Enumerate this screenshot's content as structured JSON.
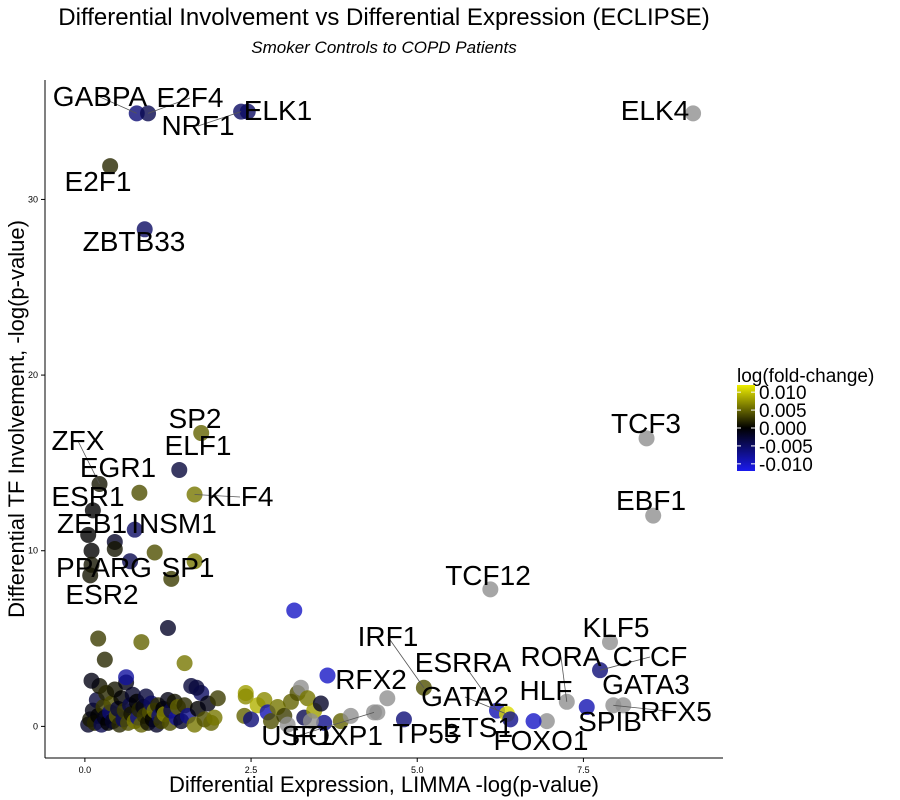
{
  "chart_data": {
    "type": "scatter",
    "title": "Differential Involvement vs Differential Expression (ECLIPSE)",
    "subtitle": "Smoker Controls to COPD Patients",
    "xlabel": "Differential Expression,  LIMMA -log(p-value)",
    "ylabel": "Differential TF Involvement, -log(p-value)",
    "xlim": [
      -0.6,
      9.6
    ],
    "ylim": [
      -1.8,
      36.8
    ],
    "xticks": [
      {
        "value": 0,
        "label": "0.0"
      },
      {
        "value": 2.5,
        "label": "2.5"
      },
      {
        "value": 5,
        "label": "5.0"
      },
      {
        "value": 7.5,
        "label": "7.5"
      }
    ],
    "yticks": [
      {
        "value": 0,
        "label": "0"
      },
      {
        "value": 10,
        "label": "10"
      },
      {
        "value": 20,
        "label": "20"
      },
      {
        "value": 30,
        "label": "30"
      }
    ],
    "grid": false,
    "legend": {
      "title": "log(fold-change)",
      "position": "right",
      "stops": [
        {
          "value": 0.01,
          "label": "0.010"
        },
        {
          "value": 0.005,
          "label": "0.005"
        },
        {
          "value": 0.0,
          "label": "0.000"
        },
        {
          "value": -0.005,
          "label": "-0.005"
        },
        {
          "value": -0.01,
          "label": "-0.010"
        }
      ],
      "colorscale": {
        "low": "#1a1aee",
        "mid": "#000000",
        "high": "#eeee00",
        "na": "#909090"
      },
      "range": [
        -0.012,
        0.012
      ]
    },
    "labeled_points": [
      {
        "name": "GABPA",
        "x": 0.78,
        "y": 34.9,
        "fc": -0.006
      },
      {
        "name": "E2F4",
        "x": 0.95,
        "y": 34.9,
        "fc": -0.004
      },
      {
        "name": "NRF1",
        "x": 2.35,
        "y": 35.0,
        "fc": -0.005
      },
      {
        "name": "ELK1",
        "x": 2.45,
        "y": 35.0,
        "fc": -0.005
      },
      {
        "name": "ELK4",
        "x": 9.15,
        "y": 34.9,
        "fc": null
      },
      {
        "name": "E2F1",
        "x": 0.38,
        "y": 31.9,
        "fc": 0.002
      },
      {
        "name": "ZBTB33",
        "x": 0.9,
        "y": 28.3,
        "fc": -0.005
      },
      {
        "name": "SP2",
        "x": 1.75,
        "y": 16.7,
        "fc": 0.005
      },
      {
        "name": "ELF1",
        "x": 1.42,
        "y": 14.6,
        "fc": -0.003
      },
      {
        "name": "ZFX",
        "x": 0.22,
        "y": 13.8,
        "fc": 0.001
      },
      {
        "name": "EGR1",
        "x": 0.82,
        "y": 13.3,
        "fc": 0.004
      },
      {
        "name": "KLF4",
        "x": 1.65,
        "y": 13.2,
        "fc": 0.006
      },
      {
        "name": "ESR1",
        "x": 0.12,
        "y": 12.3,
        "fc": 0.0
      },
      {
        "name": "INSM1",
        "x": 0.75,
        "y": 11.2,
        "fc": -0.005
      },
      {
        "name": "ZEB1",
        "x": 0.05,
        "y": 10.9,
        "fc": 0.0
      },
      {
        "name": "SP1",
        "x": 1.65,
        "y": 9.4,
        "fc": 0.006
      },
      {
        "name": "PPARG",
        "x": 0.68,
        "y": 9.4,
        "fc": -0.004
      },
      {
        "name": "ESR2",
        "x": 0.08,
        "y": 8.6,
        "fc": 0.001
      },
      {
        "name": "TCF3",
        "x": 8.45,
        "y": 16.4,
        "fc": null
      },
      {
        "name": "EBF1",
        "x": 8.55,
        "y": 12.0,
        "fc": null
      },
      {
        "name": "TCF12",
        "x": 6.1,
        "y": 7.8,
        "fc": null
      },
      {
        "name": "KLF5",
        "x": 7.9,
        "y": 4.8,
        "fc": null
      },
      {
        "name": "IRF1",
        "x": 5.1,
        "y": 2.2,
        "fc": 0.004
      },
      {
        "name": "RORA",
        "x": 7.25,
        "y": 1.4,
        "fc": null
      },
      {
        "name": "CTCF",
        "x": 7.75,
        "y": 3.2,
        "fc": -0.006
      },
      {
        "name": "ESRRA",
        "x": 6.2,
        "y": 0.9,
        "fc": -0.009
      },
      {
        "name": "RFX2",
        "x": 4.55,
        "y": 1.6,
        "fc": null
      },
      {
        "name": "GATA3",
        "x": 8.1,
        "y": 1.2,
        "fc": null
      },
      {
        "name": "GATA2",
        "x": 6.35,
        "y": 0.7,
        "fc": 0.011
      },
      {
        "name": "HLF",
        "x": 6.95,
        "y": 0.3,
        "fc": null
      },
      {
        "name": "RFX5",
        "x": 7.95,
        "y": 1.2,
        "fc": null
      },
      {
        "name": "USF1",
        "x": 4.35,
        "y": 0.8,
        "fc": null
      },
      {
        "name": "SPIB",
        "x": 7.55,
        "y": 1.1,
        "fc": -0.009
      },
      {
        "name": "FOXP1",
        "x": 3.4,
        "y": 0.3,
        "fc": null
      },
      {
        "name": "TP53",
        "x": 4.8,
        "y": 0.4,
        "fc": -0.006
      },
      {
        "name": "ETS1",
        "x": 6.4,
        "y": 0.4,
        "fc": -0.007
      },
      {
        "name": "FOXO1",
        "x": 6.75,
        "y": 0.3,
        "fc": -0.01
      }
    ],
    "points": [
      {
        "x": 0.05,
        "y": 0.1,
        "fc": -0.002
      },
      {
        "x": 0.08,
        "y": 0.4,
        "fc": 0.001
      },
      {
        "x": 0.12,
        "y": 0.9,
        "fc": -0.001
      },
      {
        "x": 0.15,
        "y": 0.2,
        "fc": 0.002
      },
      {
        "x": 0.18,
        "y": 1.5,
        "fc": -0.003
      },
      {
        "x": 0.2,
        "y": 0.6,
        "fc": 0.0
      },
      {
        "x": 0.22,
        "y": 2.3,
        "fc": 0.001
      },
      {
        "x": 0.25,
        "y": 0.1,
        "fc": -0.004
      },
      {
        "x": 0.28,
        "y": 1.1,
        "fc": 0.003
      },
      {
        "x": 0.3,
        "y": 0.5,
        "fc": -0.001
      },
      {
        "x": 0.32,
        "y": 1.9,
        "fc": 0.002
      },
      {
        "x": 0.35,
        "y": 0.2,
        "fc": 0.0
      },
      {
        "x": 0.38,
        "y": 0.8,
        "fc": -0.006
      },
      {
        "x": 0.4,
        "y": 1.3,
        "fc": 0.004
      },
      {
        "x": 0.42,
        "y": 0.3,
        "fc": -0.002
      },
      {
        "x": 0.45,
        "y": 2.1,
        "fc": 0.001
      },
      {
        "x": 0.48,
        "y": 0.6,
        "fc": 0.005
      },
      {
        "x": 0.5,
        "y": 1.0,
        "fc": -0.003
      },
      {
        "x": 0.52,
        "y": 0.1,
        "fc": 0.002
      },
      {
        "x": 0.55,
        "y": 1.6,
        "fc": 0.0
      },
      {
        "x": 0.58,
        "y": 0.4,
        "fc": -0.005
      },
      {
        "x": 0.6,
        "y": 0.9,
        "fc": 0.003
      },
      {
        "x": 0.62,
        "y": 2.5,
        "fc": -0.001
      },
      {
        "x": 0.65,
        "y": 0.2,
        "fc": 0.004
      },
      {
        "x": 0.68,
        "y": 1.2,
        "fc": -0.004
      },
      {
        "x": 0.7,
        "y": 0.7,
        "fc": 0.001
      },
      {
        "x": 0.72,
        "y": 1.8,
        "fc": -0.002
      },
      {
        "x": 0.75,
        "y": 0.3,
        "fc": 0.006
      },
      {
        "x": 0.78,
        "y": 1.4,
        "fc": 0.0
      },
      {
        "x": 0.8,
        "y": 0.5,
        "fc": -0.007
      },
      {
        "x": 0.82,
        "y": 0.95,
        "fc": 0.002
      },
      {
        "x": 0.85,
        "y": 0.1,
        "fc": 0.005
      },
      {
        "x": 0.88,
        "y": 1.1,
        "fc": -0.001
      },
      {
        "x": 0.9,
        "y": 0.6,
        "fc": 0.003
      },
      {
        "x": 0.92,
        "y": 1.7,
        "fc": -0.003
      },
      {
        "x": 0.95,
        "y": 0.2,
        "fc": 0.001
      },
      {
        "x": 0.98,
        "y": 0.8,
        "fc": 0.004
      },
      {
        "x": 1.0,
        "y": 1.3,
        "fc": -0.005
      },
      {
        "x": 1.02,
        "y": 0.4,
        "fc": 0.0
      },
      {
        "x": 1.05,
        "y": 0.9,
        "fc": 0.006
      },
      {
        "x": 1.08,
        "y": 0.1,
        "fc": -0.002
      },
      {
        "x": 1.1,
        "y": 1.2,
        "fc": 0.002
      },
      {
        "x": 1.12,
        "y": 0.6,
        "fc": -0.006
      },
      {
        "x": 1.15,
        "y": 0.3,
        "fc": 0.003
      },
      {
        "x": 1.18,
        "y": 1.0,
        "fc": 0.0
      },
      {
        "x": 1.2,
        "y": 0.7,
        "fc": 0.007
      },
      {
        "x": 1.25,
        "y": 1.5,
        "fc": -0.001
      },
      {
        "x": 1.28,
        "y": 0.2,
        "fc": 0.004
      },
      {
        "x": 1.3,
        "y": 0.9,
        "fc": -0.004
      },
      {
        "x": 1.35,
        "y": 1.4,
        "fc": 0.001
      },
      {
        "x": 1.38,
        "y": 0.5,
        "fc": -0.008
      },
      {
        "x": 1.4,
        "y": 1.1,
        "fc": 0.005
      },
      {
        "x": 1.45,
        "y": 0.3,
        "fc": -0.002
      },
      {
        "x": 1.5,
        "y": 1.2,
        "fc": 0.002
      },
      {
        "x": 1.55,
        "y": 0.6,
        "fc": -0.007
      },
      {
        "x": 1.6,
        "y": 2.3,
        "fc": -0.003
      },
      {
        "x": 1.65,
        "y": 0.1,
        "fc": 0.006
      },
      {
        "x": 1.7,
        "y": 1.0,
        "fc": 0.0
      },
      {
        "x": 1.75,
        "y": 1.9,
        "fc": -0.005
      },
      {
        "x": 1.8,
        "y": 0.4,
        "fc": 0.004
      },
      {
        "x": 1.85,
        "y": 1.3,
        "fc": -0.001
      },
      {
        "x": 1.9,
        "y": 0.2,
        "fc": 0.005
      },
      {
        "x": 1.95,
        "y": 0.5,
        "fc": 0.006
      },
      {
        "x": 2.0,
        "y": 1.6,
        "fc": 0.003
      },
      {
        "x": 0.1,
        "y": 2.6,
        "fc": -0.001
      },
      {
        "x": 0.1,
        "y": 10.0,
        "fc": 0.0
      },
      {
        "x": 0.1,
        "y": 9.2,
        "fc": 0.001
      },
      {
        "x": 0.45,
        "y": 10.5,
        "fc": -0.002
      },
      {
        "x": 0.45,
        "y": 10.1,
        "fc": 0.001
      },
      {
        "x": 1.05,
        "y": 9.9,
        "fc": 0.004
      },
      {
        "x": 1.3,
        "y": 8.4,
        "fc": 0.003
      },
      {
        "x": 1.25,
        "y": 5.6,
        "fc": -0.002
      },
      {
        "x": 0.2,
        "y": 5.0,
        "fc": 0.003
      },
      {
        "x": 0.3,
        "y": 3.8,
        "fc": 0.002
      },
      {
        "x": 0.85,
        "y": 4.8,
        "fc": 0.005
      },
      {
        "x": 0.62,
        "y": 2.8,
        "fc": -0.008
      },
      {
        "x": 1.5,
        "y": 3.6,
        "fc": 0.006
      },
      {
        "x": 1.68,
        "y": 2.2,
        "fc": -0.003
      },
      {
        "x": 2.42,
        "y": 1.9,
        "fc": 0.008
      },
      {
        "x": 2.42,
        "y": 1.7,
        "fc": 0.007
      },
      {
        "x": 2.4,
        "y": 0.6,
        "fc": 0.005
      },
      {
        "x": 2.5,
        "y": 0.4,
        "fc": -0.006
      },
      {
        "x": 2.6,
        "y": 1.2,
        "fc": 0.009
      },
      {
        "x": 2.7,
        "y": 1.5,
        "fc": 0.007
      },
      {
        "x": 2.75,
        "y": 0.8,
        "fc": -0.009
      },
      {
        "x": 2.8,
        "y": 0.3,
        "fc": 0.004
      },
      {
        "x": 2.9,
        "y": 1.1,
        "fc": 0.006
      },
      {
        "x": 3.0,
        "y": 0.6,
        "fc": 0.003
      },
      {
        "x": 3.05,
        "y": 0.1,
        "fc": null
      },
      {
        "x": 3.1,
        "y": 1.4,
        "fc": 0.005
      },
      {
        "x": 3.15,
        "y": 6.6,
        "fc": -0.01
      },
      {
        "x": 3.2,
        "y": 1.9,
        "fc": 0.004
      },
      {
        "x": 3.25,
        "y": 2.2,
        "fc": null
      },
      {
        "x": 3.3,
        "y": 0.5,
        "fc": -0.004
      },
      {
        "x": 3.35,
        "y": 1.6,
        "fc": 0.006
      },
      {
        "x": 3.45,
        "y": 0.9,
        "fc": 0.008
      },
      {
        "x": 3.55,
        "y": 1.3,
        "fc": -0.002
      },
      {
        "x": 3.6,
        "y": 0.2,
        "fc": -0.007
      },
      {
        "x": 3.65,
        "y": 2.9,
        "fc": -0.01
      },
      {
        "x": 3.85,
        "y": 0.3,
        "fc": 0.005
      },
      {
        "x": 4.4,
        "y": 0.8,
        "fc": null
      },
      {
        "x": 4.0,
        "y": 0.6,
        "fc": null
      }
    ]
  }
}
